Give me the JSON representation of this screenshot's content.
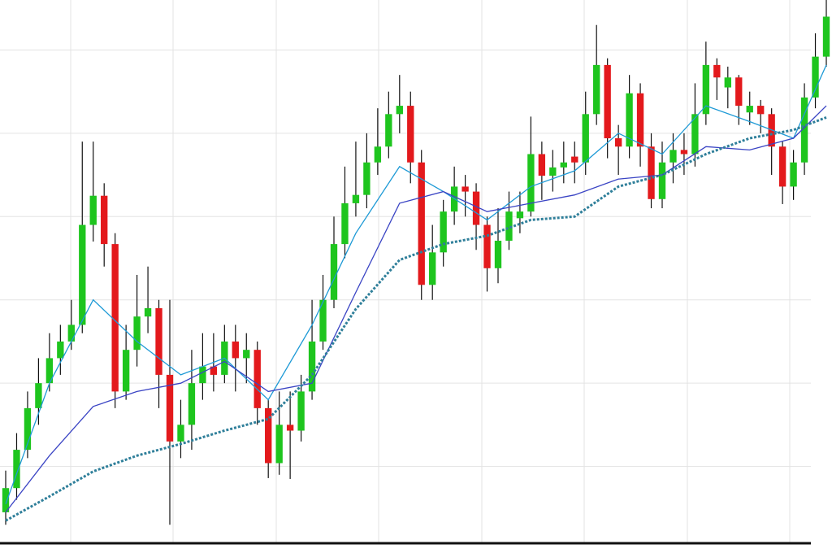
{
  "chart_data": {
    "type": "candlestick",
    "ylim": [
      0,
      66
    ],
    "yticks": [
      10,
      20,
      30,
      40,
      50,
      60
    ],
    "grid": true,
    "up_color": "#1ec51e",
    "down_color": "#e3191c",
    "wick_color": "#111111",
    "open": [
      4.5,
      7.4,
      12,
      17,
      20,
      23,
      25,
      27,
      39,
      42.5,
      36.7,
      19,
      24,
      28,
      29,
      21,
      13,
      15,
      20,
      22,
      21,
      25,
      23,
      24,
      17,
      10.4,
      15,
      14.3,
      19,
      25,
      30,
      36.7,
      41.6,
      42.6,
      46.5,
      48.4,
      52.3,
      53.3,
      46.5,
      31.8,
      35.7,
      40.6,
      43.6,
      43,
      39,
      33.8,
      37.1,
      39.8,
      40.6,
      47.5,
      44.9,
      45.9,
      47.2,
      46.5,
      52.3,
      58.2,
      49.4,
      48.4,
      54.8,
      48.4,
      42.1,
      46.5,
      48,
      47.5,
      52.3,
      58.2,
      55.5,
      56.7,
      52.5,
      53.3,
      52.3,
      48.4,
      43.6,
      46.5,
      54.3,
      59.2
    ],
    "high": [
      9.5,
      14,
      19,
      23,
      26,
      27,
      30,
      49,
      49,
      44,
      38,
      27,
      33,
      34,
      30,
      30,
      18,
      24,
      26,
      26,
      27,
      27,
      26,
      25,
      18,
      19,
      19,
      21,
      30,
      33,
      40,
      46,
      49,
      50,
      53,
      55,
      57,
      55,
      48,
      39,
      42,
      46,
      45,
      44,
      40,
      41,
      43,
      43,
      52,
      49,
      48,
      49,
      49,
      55,
      63,
      59,
      51,
      57,
      56,
      50,
      49,
      50,
      50,
      56,
      61,
      59,
      58,
      57,
      55,
      54,
      53,
      49,
      48,
      56,
      62,
      66
    ],
    "low": [
      3,
      6,
      11,
      15,
      19,
      21,
      24,
      26,
      37,
      34,
      17,
      18,
      22,
      26,
      17,
      3,
      11,
      12,
      18,
      19,
      20,
      19,
      20,
      15,
      8.6,
      9,
      8.5,
      13,
      18,
      24,
      29,
      35,
      40,
      41,
      45,
      47,
      50,
      44,
      30,
      30,
      34,
      39,
      40,
      36,
      31,
      32,
      36,
      38,
      40,
      42,
      43,
      44,
      44,
      45,
      51,
      47,
      45,
      47,
      46,
      41,
      41,
      44,
      45,
      46,
      51,
      54,
      53,
      51,
      51,
      50,
      45,
      41.5,
      42,
      45,
      53,
      58
    ],
    "close": [
      7.4,
      12,
      17,
      20,
      23,
      25,
      27,
      39,
      42.5,
      36.7,
      19,
      24,
      28,
      29,
      21,
      13,
      15,
      20,
      22,
      21,
      25,
      23,
      24,
      17,
      10.4,
      15,
      14.3,
      19,
      25,
      30,
      36.7,
      41.6,
      42.6,
      46.5,
      48.4,
      52.3,
      53.3,
      46.5,
      31.8,
      35.7,
      40.6,
      43.6,
      43,
      39,
      33.8,
      37.1,
      40.6,
      40.6,
      47.5,
      44.9,
      45.9,
      46.5,
      46.5,
      52.3,
      58.2,
      49.4,
      48.4,
      54.8,
      48.4,
      42.1,
      46.5,
      48,
      47.5,
      52.3,
      58.2,
      56.7,
      56.7,
      53.3,
      53.3,
      52.3,
      48.4,
      43.6,
      46.5,
      54.3,
      59.2,
      64
    ],
    "moving_averages": [
      {
        "color": "#1e9ad6",
        "dashed": false,
        "x": [
          0,
          4,
          8,
          12,
          16,
          20,
          24,
          28,
          32,
          36,
          40,
          44,
          48,
          52,
          56,
          60,
          64,
          68,
          72,
          75
        ],
        "values": [
          5.5,
          20,
          30,
          25,
          21,
          23,
          18,
          27,
          38,
          46,
          43,
          39.6,
          43.6,
          45.5,
          50,
          47.5,
          53.3,
          51.4,
          49.4,
          58.2
        ]
      },
      {
        "color": "#3a44c4",
        "dashed": false,
        "x": [
          0,
          4,
          8,
          12,
          16,
          20,
          24,
          28,
          32,
          36,
          40,
          44,
          48,
          52,
          56,
          60,
          64,
          68,
          72,
          75
        ],
        "values": [
          4.5,
          11.3,
          17.2,
          19,
          20,
          22.6,
          19,
          20,
          30.9,
          41.6,
          43,
          40.6,
          41.6,
          42.6,
          44.5,
          45,
          48.4,
          48,
          49.4,
          53.3
        ]
      },
      {
        "color": "#2f7f9a",
        "dashed": true,
        "x": [
          0,
          4,
          8,
          12,
          16,
          20,
          24,
          28,
          32,
          36,
          40,
          44,
          48,
          52,
          56,
          60,
          64,
          68,
          72,
          75
        ],
        "values": [
          3.5,
          6.4,
          9.4,
          11.3,
          12.7,
          14.3,
          15.7,
          21,
          28.9,
          34.8,
          36.7,
          37.7,
          39.6,
          40,
          43.6,
          45,
          47.5,
          49.4,
          50.4,
          51.9
        ]
      }
    ]
  }
}
